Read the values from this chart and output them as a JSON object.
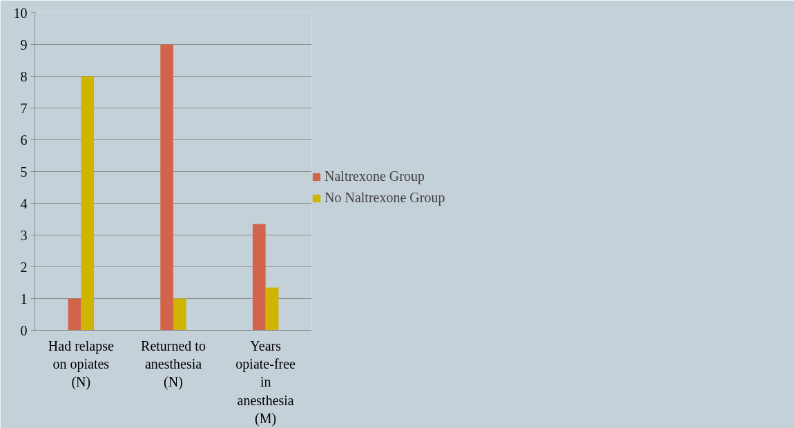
{
  "chart_data": {
    "type": "bar",
    "categories": [
      "Had relapse on opiates (N)",
      "Returned to anesthesia (N)",
      "Years opiate-free in anesthesia (M)"
    ],
    "series": [
      {
        "name": "Naltrexone Group",
        "color": "#d2644b",
        "values": [
          1,
          9,
          3.35
        ]
      },
      {
        "name": "No Naltrexone Group",
        "color": "#cfb500",
        "values": [
          8,
          1,
          1.35
        ]
      }
    ],
    "ylim": [
      0,
      10
    ],
    "yticks": [
      0,
      1,
      2,
      3,
      4,
      5,
      6,
      7,
      8,
      9,
      10
    ],
    "grid": "y",
    "legend": "right"
  }
}
